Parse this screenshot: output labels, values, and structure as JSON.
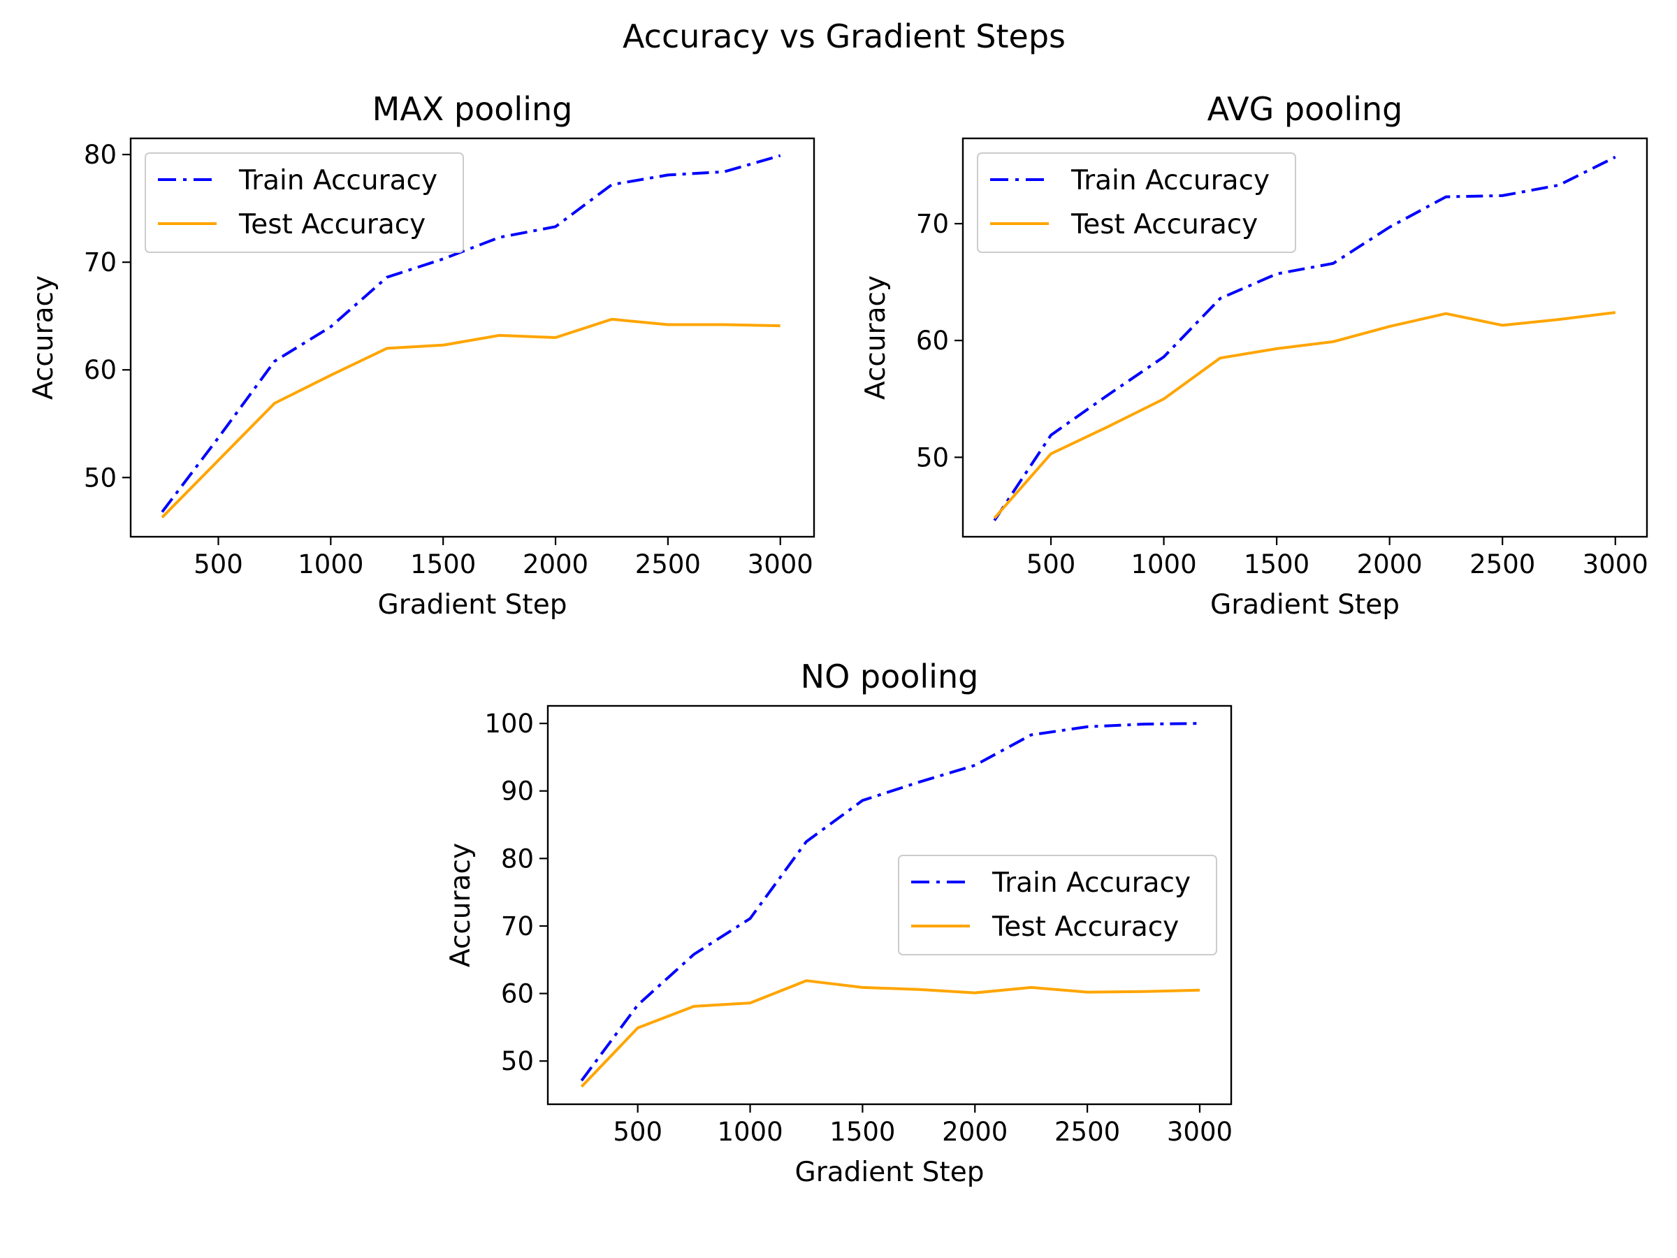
{
  "figure_title": "Accuracy vs Gradient Steps",
  "colors": {
    "train": "#0000ff",
    "test": "#ffa500",
    "axes": "#000000",
    "legend_border": "#cccccc"
  },
  "chart_data": [
    {
      "type": "line",
      "title": "MAX pooling",
      "xlabel": "Gradient Step",
      "ylabel": "Accuracy",
      "xlim": [
        110,
        3150
      ],
      "ylim": [
        44.5,
        81.5
      ],
      "xticks": [
        500,
        1000,
        1500,
        2000,
        2500,
        3000
      ],
      "yticks": [
        50,
        60,
        70,
        80
      ],
      "legend_loc": "upper-left",
      "x": [
        250,
        500,
        750,
        1000,
        1250,
        1500,
        1750,
        2000,
        2250,
        2500,
        2750,
        3000
      ],
      "series": [
        {
          "name": "Train Accuracy",
          "style": "dashdot",
          "color": "#0000ff",
          "values": [
            46.8,
            53.7,
            60.8,
            64.0,
            68.6,
            70.3,
            72.3,
            73.3,
            77.2,
            78.1,
            78.4,
            79.9
          ]
        },
        {
          "name": "Test Accuracy",
          "style": "solid",
          "color": "#ffa500",
          "values": [
            46.3,
            51.6,
            56.9,
            59.5,
            62.0,
            62.3,
            63.2,
            63.0,
            64.7,
            64.2,
            64.2,
            64.1
          ]
        }
      ]
    },
    {
      "type": "line",
      "title": "AVG pooling",
      "xlabel": "Gradient Step",
      "ylabel": "Accuracy",
      "xlim": [
        110,
        3140
      ],
      "ylim": [
        43.2,
        77.3
      ],
      "xticks": [
        500,
        1000,
        1500,
        2000,
        2500,
        3000
      ],
      "yticks": [
        50,
        60,
        70
      ],
      "legend_loc": "upper-left",
      "x": [
        250,
        500,
        750,
        1000,
        1250,
        1500,
        1750,
        2000,
        2250,
        2500,
        2750,
        3000
      ],
      "series": [
        {
          "name": "Train Accuracy",
          "style": "dashdot",
          "color": "#0000ff",
          "values": [
            44.6,
            51.9,
            55.3,
            58.6,
            63.6,
            65.7,
            66.6,
            69.7,
            72.3,
            72.4,
            73.3,
            75.7
          ]
        },
        {
          "name": "Test Accuracy",
          "style": "solid",
          "color": "#ffa500",
          "values": [
            44.8,
            50.3,
            52.6,
            55.0,
            58.5,
            59.3,
            59.9,
            61.2,
            62.3,
            61.3,
            61.8,
            62.4
          ]
        }
      ]
    },
    {
      "type": "line",
      "title": "NO pooling",
      "xlabel": "Gradient Step",
      "ylabel": "Accuracy",
      "xlim": [
        100,
        3140
      ],
      "ylim": [
        43.6,
        102.6
      ],
      "xticks": [
        500,
        1000,
        1500,
        2000,
        2500,
        3000
      ],
      "yticks": [
        50,
        60,
        70,
        80,
        90,
        100
      ],
      "legend_loc": "center-right",
      "x": [
        250,
        500,
        750,
        1000,
        1250,
        1500,
        1750,
        2000,
        2250,
        2500,
        2750,
        3000
      ],
      "series": [
        {
          "name": "Train Accuracy",
          "style": "dashdot",
          "color": "#0000ff",
          "values": [
            47.1,
            58.3,
            65.8,
            71.1,
            82.5,
            88.6,
            91.3,
            93.8,
            98.3,
            99.5,
            99.9,
            100.0
          ]
        },
        {
          "name": "Test Accuracy",
          "style": "solid",
          "color": "#ffa500",
          "values": [
            46.2,
            54.9,
            58.1,
            58.6,
            61.9,
            60.9,
            60.6,
            60.1,
            60.9,
            60.2,
            60.3,
            60.5
          ]
        }
      ]
    }
  ]
}
